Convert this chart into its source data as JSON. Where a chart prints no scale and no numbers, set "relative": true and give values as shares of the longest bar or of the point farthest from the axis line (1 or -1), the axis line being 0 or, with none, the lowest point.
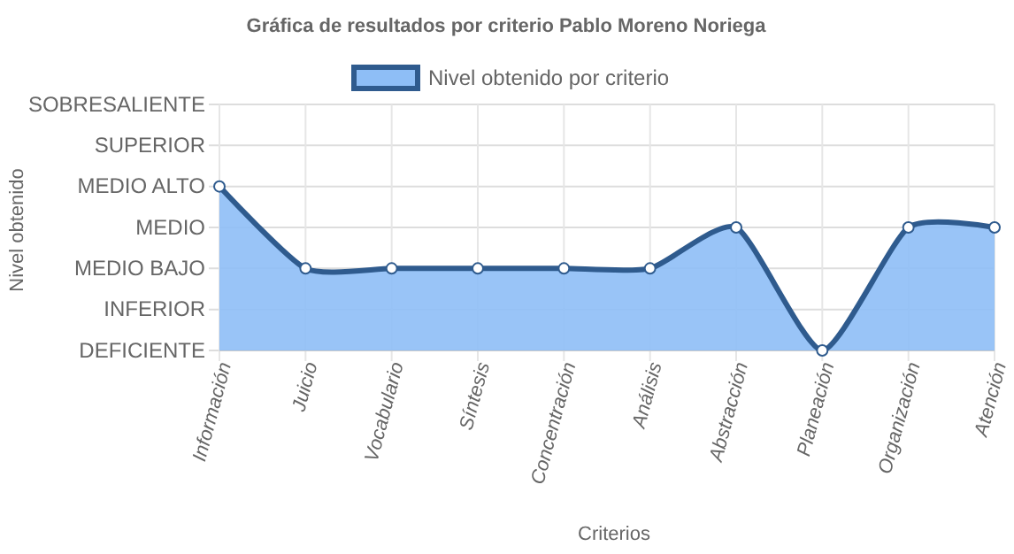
{
  "chart_data": {
    "type": "area",
    "title": "Gráfica de resultados por criterio Pablo Moreno Noriega",
    "xlabel": "Criterios",
    "categories": [
      "Información",
      "Juicio",
      "Vocabulario",
      "Síntesis",
      "Concentración",
      "Análisis",
      "Abstracción",
      "Planeación",
      "Organización",
      "Atención"
    ],
    "series": [
      {
        "name": "Nivel obtenido por criterio",
        "color": "#2f5b8e",
        "values": [
          1,
          0.5,
          0.5,
          0.5,
          0.5,
          0.5,
          0.75,
          0,
          0.75,
          0.75
        ]
      }
    ],
    "relative": true,
    "ylim": [
      0,
      1.5
    ],
    "annotations": [
      "DEFICIENTE",
      "INFERIOR",
      "MEDIO BAJO",
      "MEDIO",
      "MEDIO ALTO",
      "SUPERIOR",
      "SOBRESALIENTE",
      "Nivel obtenido"
    ],
    "grid": true,
    "legend": "top",
    "marker": "circle"
  }
}
